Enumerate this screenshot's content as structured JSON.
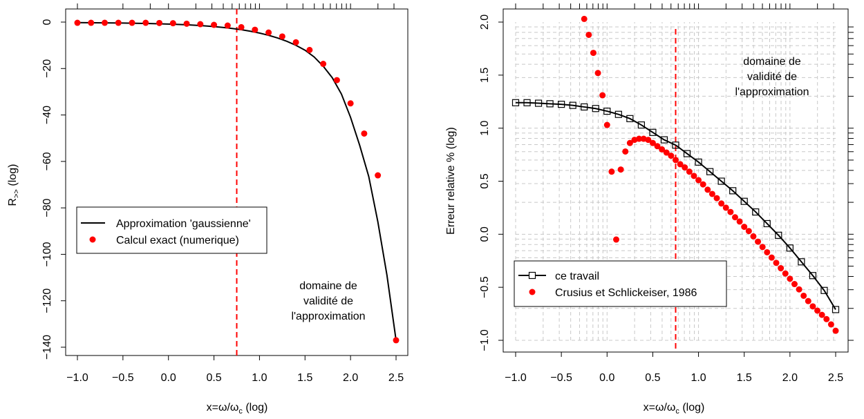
{
  "chart_data": [
    {
      "type": "line",
      "xlabel": "x=ω/ω",
      "xlabel_sub": "c",
      "xlabel_suffix": " (log)",
      "ylabel": "R",
      "ylabel_sub": ">>",
      "ylabel_suffix": " (log)",
      "xlim": [
        -1.0,
        2.5
      ],
      "ylim": [
        -140,
        0
      ],
      "xticks": [
        "−1.0",
        "−0.5",
        "0.0",
        "0.5",
        "1.0",
        "1.5",
        "2.0",
        "2.5"
      ],
      "yticks": [
        "0",
        "−20",
        "−40",
        "−60",
        "−80",
        "−100",
        "−120",
        "−140"
      ],
      "vline_x": 0.75,
      "vline_color": "#ff0000",
      "legend": {
        "position": "left-middle",
        "entries": [
          "Approximation 'gaussienne'",
          "Calcul exact (numerique)"
        ]
      },
      "annotation": [
        "domaine de",
        "validité de",
        "l'approximation"
      ],
      "series": [
        {
          "name": "Approximation 'gaussienne'",
          "style": "line",
          "color": "#000000",
          "x": [
            -1.0,
            -0.9,
            -0.8,
            -0.7,
            -0.6,
            -0.5,
            -0.4,
            -0.3,
            -0.2,
            -0.1,
            0.0,
            0.1,
            0.2,
            0.3,
            0.4,
            0.5,
            0.6,
            0.7,
            0.8,
            0.9,
            1.0,
            1.1,
            1.2,
            1.3,
            1.4,
            1.5,
            1.6,
            1.7,
            1.8,
            1.9,
            2.0,
            2.1,
            2.2,
            2.3,
            2.4,
            2.5
          ],
          "y": [
            -0.23,
            -0.26,
            -0.29,
            -0.33,
            -0.37,
            -0.42,
            -0.48,
            -0.55,
            -0.64,
            -0.74,
            -0.86,
            -1.0,
            -1.17,
            -1.38,
            -1.63,
            -1.93,
            -2.3,
            -2.74,
            -3.28,
            -3.93,
            -4.72,
            -5.68,
            -6.85,
            -8.27,
            -10.0,
            -12.11,
            -15.0,
            -19.0,
            -24.0,
            -31.0,
            -41.0,
            -53.0,
            -66.5,
            -86.0,
            -109.0,
            -137.0
          ]
        },
        {
          "name": "Calcul exact (numerique)",
          "style": "points",
          "color": "#ff0000",
          "x": [
            -1.0,
            -0.85,
            -0.7,
            -0.55,
            -0.4,
            -0.25,
            -0.1,
            0.05,
            0.2,
            0.35,
            0.5,
            0.65,
            0.8,
            0.95,
            1.1,
            1.25,
            1.4,
            1.55,
            1.7,
            1.85,
            2.0,
            2.15,
            2.3,
            2.5
          ],
          "y": [
            -0.3,
            -0.3,
            -0.3,
            -0.3,
            -0.3,
            -0.3,
            -0.4,
            -0.5,
            -0.7,
            -0.9,
            -1.2,
            -1.5,
            -2.2,
            -3.3,
            -4.5,
            -6.2,
            -8.7,
            -12.0,
            -18.0,
            -25.0,
            -35.0,
            -48.0,
            -66.0,
            -137.0
          ]
        }
      ]
    },
    {
      "type": "line",
      "xlabel": "x=ω/ω",
      "xlabel_sub": "c",
      "xlabel_suffix": " (log)",
      "ylabel": "Erreur relative % (log)",
      "xlim": [
        -1.0,
        2.5
      ],
      "ylim": [
        -1.0,
        2.0
      ],
      "xticks": [
        "−1.0",
        "−0.5",
        "0.0",
        "0.5",
        "1.0",
        "1.5",
        "2.0",
        "2.5"
      ],
      "yticks": [
        "−1.0",
        "−0.5",
        "0.0",
        "0.5",
        "1.0",
        "1.5",
        "2.0"
      ],
      "grid": true,
      "vline_x": 0.75,
      "vline_color": "#ff0000",
      "legend": {
        "position": "bottom-left",
        "entries": [
          "ce travail",
          "Crusius et Schlickeiser, 1986"
        ]
      },
      "annotation": [
        "domaine de",
        "validité de",
        "l'approximation"
      ],
      "series": [
        {
          "name": "ce travail",
          "style": "line+open-squares",
          "color": "#000000",
          "x": [
            -1.0,
            -0.875,
            -0.75,
            -0.625,
            -0.5,
            -0.375,
            -0.25,
            -0.125,
            0.0,
            0.125,
            0.25,
            0.375,
            0.5,
            0.625,
            0.75,
            0.875,
            1.0,
            1.125,
            1.25,
            1.375,
            1.5,
            1.625,
            1.75,
            1.875,
            2.0,
            2.125,
            2.25,
            2.375,
            2.5
          ],
          "y": [
            1.24,
            1.24,
            1.235,
            1.23,
            1.225,
            1.215,
            1.2,
            1.185,
            1.16,
            1.13,
            1.09,
            1.03,
            0.96,
            0.89,
            0.84,
            0.76,
            0.68,
            0.59,
            0.5,
            0.41,
            0.31,
            0.21,
            0.1,
            -0.01,
            -0.13,
            -0.26,
            -0.39,
            -0.53,
            -0.71
          ]
        },
        {
          "name": "Crusius et Schlickeiser, 1986",
          "style": "points",
          "color": "#ff0000",
          "x": [
            -0.25,
            -0.2,
            -0.15,
            -0.1,
            -0.05,
            0.0,
            0.05,
            0.1,
            0.15,
            0.2,
            0.25,
            0.3,
            0.35,
            0.4,
            0.45,
            0.5,
            0.55,
            0.6,
            0.65,
            0.7,
            0.75,
            0.8,
            0.85,
            0.9,
            0.95,
            1.0,
            1.05,
            1.1,
            1.15,
            1.2,
            1.25,
            1.3,
            1.35,
            1.4,
            1.45,
            1.5,
            1.55,
            1.6,
            1.65,
            1.7,
            1.75,
            1.8,
            1.85,
            1.9,
            1.95,
            2.0,
            2.05,
            2.1,
            2.15,
            2.2,
            2.25,
            2.3,
            2.35,
            2.4,
            2.45,
            2.5
          ],
          "y": [
            2.03,
            1.88,
            1.71,
            1.52,
            1.31,
            1.03,
            0.59,
            -0.05,
            0.61,
            0.78,
            0.86,
            0.89,
            0.9,
            0.9,
            0.89,
            0.86,
            0.83,
            0.8,
            0.77,
            0.74,
            0.7,
            0.66,
            0.63,
            0.59,
            0.55,
            0.51,
            0.47,
            0.42,
            0.38,
            0.34,
            0.29,
            0.25,
            0.21,
            0.16,
            0.12,
            0.07,
            0.03,
            -0.02,
            -0.07,
            -0.12,
            -0.17,
            -0.22,
            -0.27,
            -0.32,
            -0.37,
            -0.42,
            -0.47,
            -0.52,
            -0.58,
            -0.63,
            -0.68,
            -0.72,
            -0.76,
            -0.8,
            -0.85,
            -0.91
          ]
        }
      ]
    }
  ]
}
